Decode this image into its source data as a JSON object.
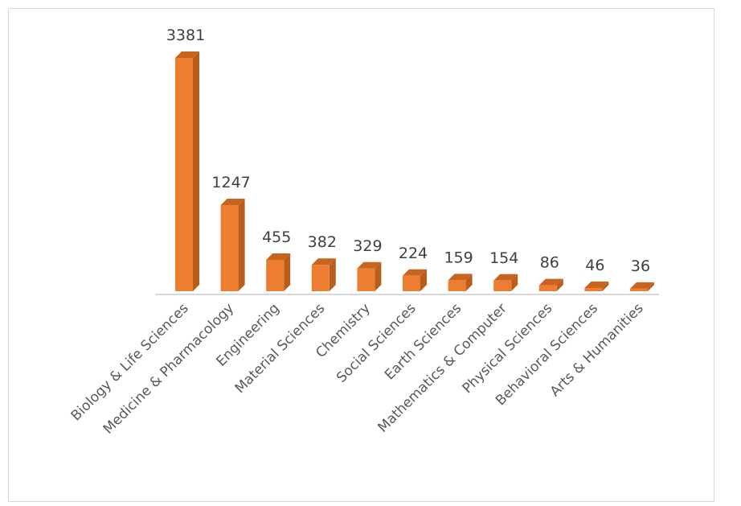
{
  "chart_data": {
    "type": "bar",
    "style": "3d-column",
    "categories": [
      "Biology & Life Sciences",
      "Medicine & Pharmacology",
      "Engineering",
      "Material Sciences",
      "Chemistry",
      "Social Sciences",
      "Earth Sciences",
      "Mathematics & Computer",
      "Physical Sciences",
      "Behavioral Sciences",
      "Arts & Humanities"
    ],
    "values": [
      3381,
      1247,
      455,
      382,
      329,
      224,
      159,
      154,
      86,
      46,
      36
    ],
    "value_labels": [
      "3381",
      "1247",
      "455",
      "382",
      "329",
      "224",
      "159",
      "154",
      "86",
      "46",
      "36"
    ],
    "title": "",
    "xlabel": "",
    "ylabel": "",
    "ylim": [
      0,
      3381
    ],
    "grid": false,
    "legend": "none",
    "colors": {
      "front": "#ed7d31",
      "side": "#b85e1c",
      "top": "#c9641f",
      "axis": "#d9d9d9"
    }
  }
}
